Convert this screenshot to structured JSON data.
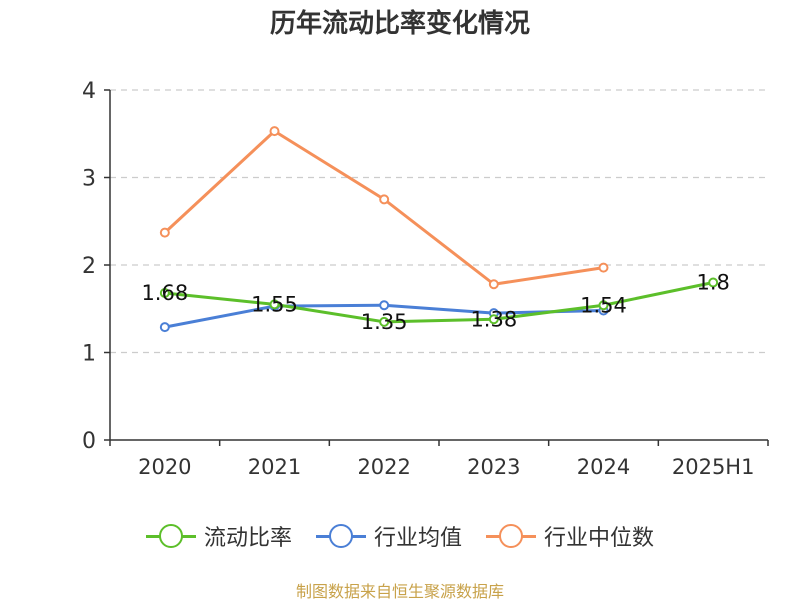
{
  "chart_data": {
    "type": "line",
    "title": "历年流动比率变化情况",
    "categories": [
      "2020",
      "2021",
      "2022",
      "2023",
      "2024",
      "2025H1"
    ],
    "ylim": [
      0,
      4
    ],
    "yticks": [
      0,
      1,
      2,
      3,
      4
    ],
    "grid": true,
    "legend_position": "bottom",
    "series": [
      {
        "name": "流动比率",
        "color": "#5cbf2a",
        "values": [
          1.68,
          1.55,
          1.35,
          1.38,
          1.54,
          1.8
        ],
        "labels": [
          "1.68",
          "1.55",
          "1.35",
          "1.38",
          "1.54",
          "1.8"
        ]
      },
      {
        "name": "行业均值",
        "color": "#4a7fd6",
        "values": [
          1.29,
          1.53,
          1.54,
          1.45,
          1.48,
          null
        ]
      },
      {
        "name": "行业中位数",
        "color": "#f5905a",
        "values": [
          2.37,
          3.53,
          2.75,
          1.78,
          1.97,
          null
        ]
      }
    ]
  },
  "source": "制图数据来自恒生聚源数据库"
}
